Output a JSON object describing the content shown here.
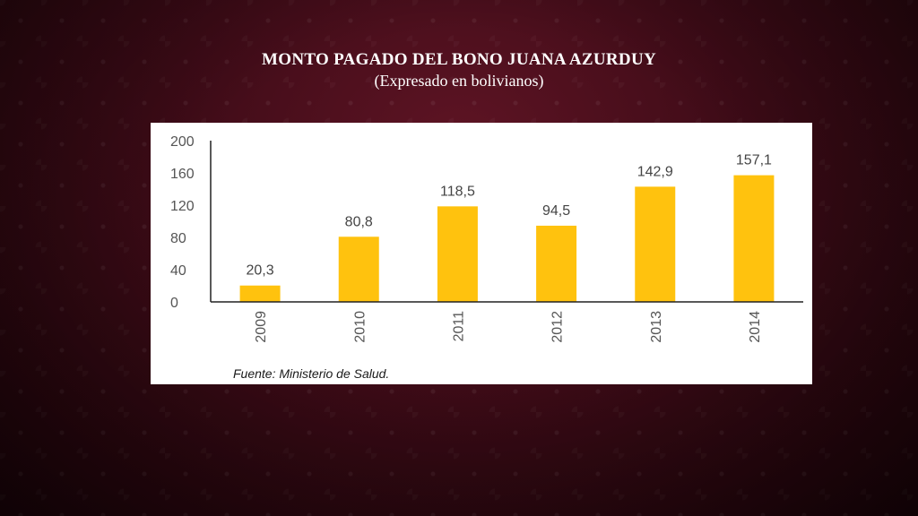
{
  "slide": {
    "title": "MONTO PAGADO DEL BONO JUANA AZURDUY",
    "subtitle": "(Expresado en bolivianos)"
  },
  "chart_data": {
    "type": "bar",
    "categories": [
      "2009",
      "2010",
      "2011",
      "2012",
      "2013",
      "2014"
    ],
    "values": [
      20.3,
      80.8,
      118.5,
      94.5,
      142.9,
      157.1
    ],
    "data_labels": [
      "20,3",
      "80,8",
      "118,5",
      "94,5",
      "142,9",
      "157,1"
    ],
    "yticks": [
      "0",
      "40",
      "80",
      "120",
      "160",
      "200"
    ],
    "ylim": [
      0,
      200
    ],
    "grid": false,
    "legend": "none",
    "bar_color": "#FFC20E",
    "source": "Fuente: Ministerio de Salud."
  }
}
